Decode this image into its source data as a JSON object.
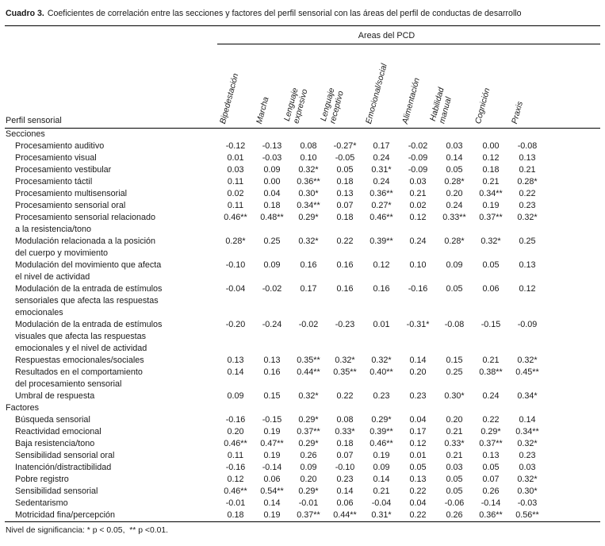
{
  "colors": {
    "background": "#ffffff",
    "text": "#1a1a1a",
    "rule": "#000000"
  },
  "caption": {
    "label": "Cuadro 3.",
    "text": "Coeficientes de correlación entre las secciones y factores del perfil sensorial con las áreas del perfil de conductas de desarrollo"
  },
  "table": {
    "group_header": "Areas del PCD",
    "row_header": "Perfil sensorial",
    "columns": [
      "Bipedestación",
      "Marcha",
      "Lenguaje\nexpresivo",
      "Lenguaje\nreceptivo",
      "Emocional/social",
      "Alimentación",
      "Habilidad\nmanual",
      "Cognición",
      "Praxis"
    ],
    "rows": [
      {
        "type": "section",
        "label": "Secciones"
      },
      {
        "type": "item",
        "label": "Procesamiento auditivo",
        "values": [
          "-0.12",
          "-0.13",
          "0.08",
          "-0.27*",
          "0.17",
          "-0.02",
          "0.03",
          "0.00",
          "-0.08"
        ]
      },
      {
        "type": "item",
        "label": "Procesamiento visual",
        "values": [
          "0.01",
          "-0.03",
          "0.10",
          "-0.05",
          "0.24",
          "-0.09",
          "0.14",
          "0.12",
          "0.13"
        ]
      },
      {
        "type": "item",
        "label": "Procesamiento vestibular",
        "values": [
          "0.03",
          "0.09",
          "0.32*",
          "0.05",
          "0.31*",
          "-0.09",
          "0.05",
          "0.18",
          "0.21"
        ]
      },
      {
        "type": "item",
        "label": "Procesamiento táctil",
        "values": [
          "0.11",
          "0.00",
          "0.36**",
          "0.18",
          "0.24",
          "0.03",
          "0.28*",
          "0.21",
          "0.28*"
        ]
      },
      {
        "type": "item",
        "label": "Procesamiento multisensorial",
        "values": [
          "0.02",
          "0.04",
          "0.30*",
          "0.13",
          "0.36**",
          "0.21",
          "0.20",
          "0.34**",
          "0.22"
        ]
      },
      {
        "type": "item",
        "label": "Procesamiento sensorial oral",
        "values": [
          "0.11",
          "0.18",
          "0.34**",
          "0.07",
          "0.27*",
          "0.02",
          "0.24",
          "0.19",
          "0.23"
        ]
      },
      {
        "type": "item",
        "label": "Procesamiento sensorial relacionado\na la resistencia/tono",
        "values": [
          "0.46**",
          "0.48**",
          "0.29*",
          "0.18",
          "0.46**",
          "0.12",
          "0.33**",
          "0.37**",
          "0.32*"
        ]
      },
      {
        "type": "item",
        "label": "Modulación relacionada a la posición\ndel cuerpo y movimiento",
        "values": [
          "0.28*",
          "0.25",
          "0.32*",
          "0.22",
          "0.39**",
          "0.24",
          "0.28*",
          "0.32*",
          "0.25"
        ]
      },
      {
        "type": "item",
        "label": "Modulación del movimiento que afecta\nel nivel de actividad",
        "values": [
          "-0.10",
          "0.09",
          "0.16",
          "0.16",
          "0.12",
          "0.10",
          "0.09",
          "0.05",
          "0.13"
        ]
      },
      {
        "type": "item",
        "label": "Modulación de la entrada de estímulos\nsensoriales que afecta las respuestas\nemocionales",
        "values": [
          "-0.04",
          "-0.02",
          "0.17",
          "0.16",
          "0.16",
          "-0.16",
          "0.05",
          "0.06",
          "0.12"
        ]
      },
      {
        "type": "item",
        "label": "Modulación de la entrada de estímulos\nvisuales que afecta las respuestas\nemocionales y el nivel de actividad",
        "values": [
          "-0.20",
          "-0.24",
          "-0.02",
          "-0.23",
          "0.01",
          "-0.31*",
          "-0.08",
          "-0.15",
          "-0.09"
        ]
      },
      {
        "type": "item",
        "label": "Respuestas emocionales/sociales",
        "values": [
          "0.13",
          "0.13",
          "0.35**",
          "0.32*",
          "0.32*",
          "0.14",
          "0.15",
          "0.21",
          "0.32*"
        ]
      },
      {
        "type": "item",
        "label": "Resultados en el comportamiento\ndel procesamiento sensorial",
        "values": [
          "0.14",
          "0.16",
          "0.44**",
          "0.35**",
          "0.40**",
          "0.20",
          "0.25",
          "0.38**",
          "0.45**"
        ]
      },
      {
        "type": "item",
        "label": "Umbral de respuesta",
        "values": [
          "0.09",
          "0.15",
          "0.32*",
          "0.22",
          "0.23",
          "0.23",
          "0.30*",
          "0.24",
          "0.34*"
        ]
      },
      {
        "type": "section",
        "label": "Factores"
      },
      {
        "type": "item",
        "label": "Búsqueda sensorial",
        "values": [
          "-0.16",
          "-0.15",
          "0.29*",
          "0.08",
          "0.29*",
          "0.04",
          "0.20",
          "0.22",
          "0.14"
        ]
      },
      {
        "type": "item",
        "label": "Reactividad emocional",
        "values": [
          "0.20",
          "0.19",
          "0.37**",
          "0.33*",
          "0.39**",
          "0.17",
          "0.21",
          "0.29*",
          "0.34**"
        ]
      },
      {
        "type": "item",
        "label": "Baja resistencia/tono",
        "values": [
          "0.46**",
          "0.47**",
          "0.29*",
          "0.18",
          "0.46**",
          "0.12",
          "0.33*",
          "0.37**",
          "0.32*"
        ]
      },
      {
        "type": "item",
        "label": "Sensibilidad sensorial oral",
        "values": [
          "0.11",
          "0.19",
          "0.26",
          "0.07",
          "0.19",
          "0.01",
          "0.21",
          "0.13",
          "0.23"
        ]
      },
      {
        "type": "item",
        "label": "Inatención/distractibilidad",
        "values": [
          "-0.16",
          "-0.14",
          "0.09",
          "-0.10",
          "0.09",
          "0.05",
          "0.03",
          "0.05",
          "0.03"
        ]
      },
      {
        "type": "item",
        "label": "Pobre registro",
        "values": [
          "0.12",
          "0.06",
          "0.20",
          "0.23",
          "0.14",
          "0.13",
          "0.05",
          "0.07",
          "0.32*"
        ]
      },
      {
        "type": "item",
        "label": "Sensibilidad sensorial",
        "values": [
          "0.46**",
          "0.54**",
          "0.29*",
          "0.14",
          "0.21",
          "0.22",
          "0.05",
          "0.26",
          "0.30*"
        ]
      },
      {
        "type": "item",
        "label": "Sedentarismo",
        "values": [
          "-0.01",
          "0.14",
          "-0.01",
          "0.06",
          "-0.04",
          "0.04",
          "-0.06",
          "-0.14",
          "-0.03"
        ]
      },
      {
        "type": "item",
        "label": "Motricidad fina/percepción",
        "values": [
          "0.18",
          "0.19",
          "0.37**",
          "0.44**",
          "0.31*",
          "0.22",
          "0.26",
          "0.36**",
          "0.56**"
        ]
      }
    ]
  },
  "footnote": "Nivel de significancia: * p < 0.05,  ** p <0.01."
}
